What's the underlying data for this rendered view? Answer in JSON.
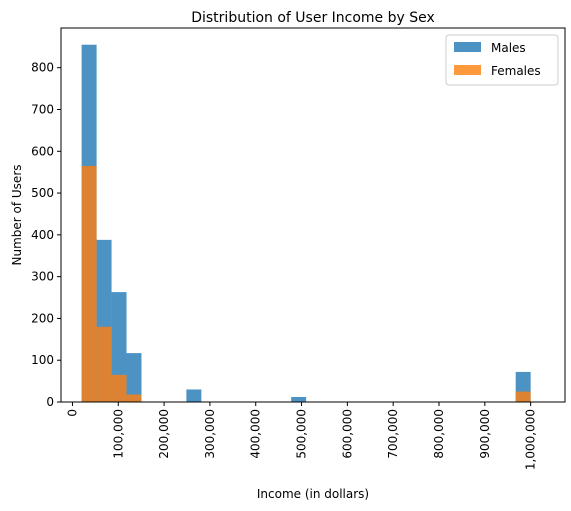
{
  "chart_data": {
    "type": "bar",
    "title": "Distribution of User Income by Sex",
    "xlabel": "Income (in dollars)",
    "ylabel": "Number of Users",
    "xlim": [
      -25000,
      1075000
    ],
    "ylim": [
      0,
      895
    ],
    "xticks": [
      0,
      100000,
      200000,
      300000,
      400000,
      500000,
      600000,
      700000,
      800000,
      900000,
      1000000
    ],
    "xtick_labels": [
      "0",
      "100,000",
      "200,000",
      "300,000",
      "400,000",
      "500,000",
      "600,000",
      "700,000",
      "800,000",
      "900,000",
      "1,000,000"
    ],
    "yticks": [
      0,
      100,
      200,
      300,
      400,
      500,
      600,
      700,
      800
    ],
    "ytick_labels": [
      "0",
      "100",
      "200",
      "300",
      "400",
      "500",
      "600",
      "700",
      "800"
    ],
    "grid": false,
    "legend_position": "top-right",
    "bin_edges": [
      20000,
      52666.67,
      85333.33,
      118000,
      150666.67,
      183333.33,
      216000,
      248666.67,
      281333.33,
      314000,
      346666.67,
      379333.33,
      412000,
      444666.67,
      477333.33,
      510000,
      542666.67,
      575333.33,
      608000,
      640666.67,
      673333.33,
      706000,
      738666.67,
      771333.33,
      804000,
      836666.67,
      869333.33,
      902000,
      934666.67,
      967333.33,
      1000000
    ],
    "series": [
      {
        "name": "Males",
        "color": "#1f77b4",
        "values": [
          855,
          388,
          263,
          117,
          0,
          0,
          0,
          30,
          0,
          0,
          0,
          0,
          0,
          0,
          12,
          0,
          0,
          0,
          0,
          0,
          0,
          0,
          0,
          0,
          0,
          0,
          0,
          0,
          0,
          72
        ]
      },
      {
        "name": "Females",
        "color": "#ff7f0e",
        "values": [
          565,
          180,
          65,
          18,
          0,
          0,
          0,
          0,
          0,
          0,
          0,
          0,
          0,
          0,
          0,
          0,
          0,
          0,
          0,
          0,
          0,
          0,
          0,
          0,
          0,
          0,
          0,
          0,
          0,
          25
        ]
      }
    ]
  }
}
